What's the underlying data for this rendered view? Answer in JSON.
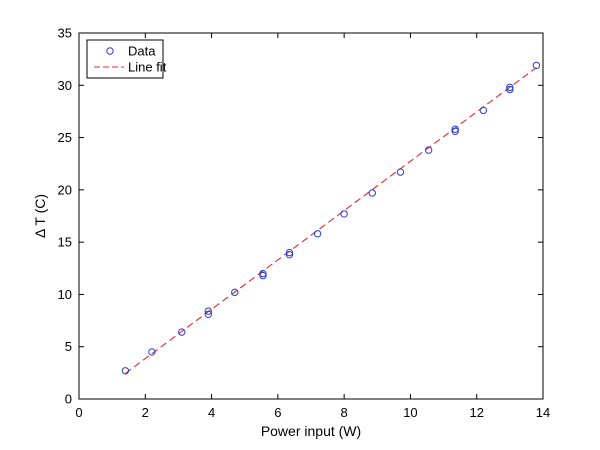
{
  "chart_data": {
    "type": "scatter",
    "xlabel": "Power input (W)",
    "ylabel": "Δ T (C)",
    "xlim": [
      0,
      14
    ],
    "ylim": [
      0,
      35
    ],
    "xticks": [
      0,
      2,
      4,
      6,
      8,
      10,
      12,
      14
    ],
    "yticks": [
      0,
      5,
      10,
      15,
      20,
      25,
      30,
      35
    ],
    "grid": false,
    "legend_position": "top-left",
    "series": [
      {
        "name": "Data",
        "style": "marker",
        "marker": "circle",
        "color": "#2b3fd1",
        "x": [
          1.4,
          2.2,
          3.1,
          3.9,
          3.9,
          4.7,
          5.55,
          5.55,
          6.35,
          6.35,
          7.2,
          8.0,
          8.85,
          9.7,
          10.55,
          11.35,
          11.35,
          12.2,
          13.0,
          13.0,
          13.8
        ],
        "y": [
          2.7,
          4.5,
          6.4,
          8.1,
          8.4,
          10.2,
          11.8,
          12.0,
          13.8,
          14.0,
          15.8,
          17.7,
          19.7,
          21.7,
          23.8,
          25.6,
          25.8,
          27.6,
          29.6,
          29.8,
          31.9
        ]
      },
      {
        "name": "Line fit",
        "style": "dashed-line",
        "color": "#e8282b",
        "x": [
          1.4,
          13.8
        ],
        "y": [
          2.45,
          31.7
        ]
      }
    ]
  }
}
